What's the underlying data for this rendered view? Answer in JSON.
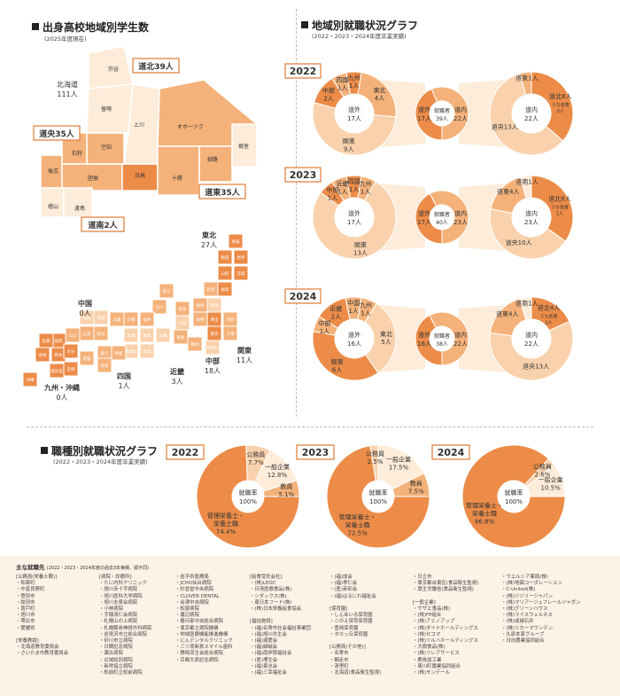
{
  "header": {
    "students_title": "出身高校地域別学生数",
    "students_sub": "(2025年度現在)",
    "regional_title": "地域別就職状況グラフ",
    "regional_sub": "(2022・2023・2024年度卒業実績)",
    "occupation_title": "職種別就職状況グラフ",
    "occupation_sub": "(2022・2023・2024年度卒業実績)"
  },
  "hokkaido_map": {
    "subregions": [
      "宗谷",
      "留萌",
      "上川",
      "オホーツク",
      "空知",
      "石狩",
      "後志",
      "胆振",
      "日高",
      "十勝",
      "釧路",
      "根室",
      "檜山",
      "渡島"
    ],
    "callouts": [
      {
        "name": "北海道",
        "count": "111人"
      },
      {
        "name": "道北",
        "count": "39人"
      },
      {
        "name": "道央",
        "count": "35人"
      },
      {
        "name": "道東",
        "count": "35人"
      },
      {
        "name": "道南",
        "count": "2人"
      }
    ]
  },
  "japan_map": {
    "prefectures": [
      "青森",
      "秋田",
      "岩手",
      "山形",
      "宮城",
      "新潟",
      "福島",
      "群馬",
      "栃木",
      "長野",
      "埼玉",
      "茨城",
      "岐阜",
      "山梨",
      "東京",
      "千葉",
      "富山",
      "石川",
      "福井",
      "滋賀",
      "京都",
      "兵庫",
      "大阪",
      "奈良",
      "和歌山",
      "三重",
      "愛知",
      "静岡",
      "神奈川",
      "鳥取",
      "島根",
      "岡山",
      "広島",
      "山口",
      "香川",
      "徳島",
      "愛媛",
      "高知",
      "福岡",
      "佐賀",
      "長崎",
      "熊本",
      "大分",
      "宮崎",
      "鹿児島",
      "沖縄"
    ],
    "regions": [
      {
        "name": "東北",
        "count": "27人"
      },
      {
        "name": "中国",
        "count": "0人"
      },
      {
        "name": "関東",
        "count": "11人"
      },
      {
        "name": "中部",
        "count": "18人"
      },
      {
        "name": "近畿",
        "count": "3人"
      },
      {
        "name": "四国",
        "count": "1人"
      },
      {
        "name": "九州・沖縄",
        "count": "0人"
      }
    ]
  },
  "colors": {
    "dark": "#ec8c48",
    "mid": "#f4b27a",
    "light": "#f9d2ad",
    "pale": "#fdecd9",
    "outline": "#e07a35"
  },
  "chart_data": [
    {
      "type": "pie",
      "title": "地域別就職状況グラフ",
      "years": [
        {
          "year": "2022",
          "center": {
            "label": "就職者",
            "count": "39人"
          },
          "outside": {
            "slices": [
              {
                "label": "北海道外",
                "value": 17
              },
              {
                "label": "北海道内",
                "value": 22
              }
            ],
            "labels": [
              {
                "name": "道外",
                "count": "17人"
              },
              {
                "name": "道内",
                "count": "22人"
              }
            ]
          },
          "left": {
            "center": {
              "name": "道外",
              "count": "17人"
            },
            "slices": [
              {
                "name": "東北",
                "value": 4,
                "count": "4人"
              },
              {
                "name": "関東",
                "value": 9,
                "count": "9人"
              },
              {
                "name": "中部",
                "value": 2,
                "count": "2人"
              },
              {
                "name": "四国",
                "value": 1,
                "count": "1人"
              },
              {
                "name": "九州",
                "value": 1,
                "count": "1人"
              }
            ]
          },
          "right": {
            "center": {
              "name": "道内",
              "count": "22人"
            },
            "slices": [
              {
                "name": "道北",
                "value": 8,
                "count": "8人",
                "note": "うち名寄",
                "note_count": "0人"
              },
              {
                "name": "道央",
                "value": 13,
                "count": "13人"
              },
              {
                "name": "道東",
                "value": 1,
                "count": "1人"
              }
            ]
          }
        },
        {
          "year": "2023",
          "center": {
            "label": "就職者",
            "count": "40人"
          },
          "outside": {
            "slices": [
              {
                "label": "北海道外",
                "value": 17
              },
              {
                "label": "北海道内",
                "value": 23
              }
            ],
            "labels": [
              {
                "name": "道外",
                "count": "17人"
              },
              {
                "name": "道内",
                "count": "23人"
              }
            ]
          },
          "left": {
            "center": {
              "name": "道外",
              "count": "17人"
            },
            "slices": [
              {
                "name": "九州",
                "value": 1,
                "count": "1人"
              },
              {
                "name": "関東",
                "value": 13,
                "count": "13人"
              },
              {
                "name": "中部",
                "value": 1,
                "count": "1人"
              },
              {
                "name": "近畿",
                "value": 1,
                "count": "1人"
              },
              {
                "name": "四国",
                "value": 1,
                "count": "1人"
              }
            ]
          },
          "right": {
            "center": {
              "name": "道内",
              "count": "23人"
            },
            "slices": [
              {
                "name": "道北",
                "value": 8,
                "count": "8人",
                "note": "うち名寄",
                "note_count": "1人"
              },
              {
                "name": "道央",
                "value": 10,
                "count": "10人"
              },
              {
                "name": "道東",
                "value": 4,
                "count": "4人"
              },
              {
                "name": "道南",
                "value": 1,
                "count": "1人"
              }
            ]
          }
        },
        {
          "year": "2024",
          "center": {
            "label": "就職者",
            "count": "38人"
          },
          "outside": {
            "slices": [
              {
                "label": "北海道外",
                "value": 16
              },
              {
                "label": "北海道内",
                "value": 22
              }
            ],
            "labels": [
              {
                "name": "道外",
                "count": "16人"
              },
              {
                "name": "道内",
                "count": "22人"
              }
            ]
          },
          "left": {
            "center": {
              "name": "道外",
              "count": "16人"
            },
            "slices": [
              {
                "name": "九州",
                "value": 1,
                "count": "1人"
              },
              {
                "name": "東北",
                "value": 5,
                "count": "5人"
              },
              {
                "name": "関東",
                "value": 6,
                "count": "6人"
              },
              {
                "name": "中部",
                "value": 1,
                "count": "1人"
              },
              {
                "name": "近畿",
                "value": 2,
                "count": "2人"
              },
              {
                "name": "中国",
                "value": 1,
                "count": "1人"
              }
            ]
          },
          "right": {
            "center": {
              "name": "道内",
              "count": "22人"
            },
            "slices": [
              {
                "name": "道北",
                "value": 4,
                "count": "4人",
                "note": "うち名寄",
                "note_count": "2人"
              },
              {
                "name": "道央",
                "value": 13,
                "count": "13人"
              },
              {
                "name": "道東",
                "value": 4,
                "count": "4人"
              },
              {
                "name": "道南",
                "value": 1,
                "count": "1人"
              }
            ]
          }
        }
      ]
    },
    {
      "type": "pie",
      "title": "職種別就職状況グラフ",
      "center": {
        "label": "就職率",
        "value": "100%"
      },
      "years": [
        {
          "year": "2022",
          "slices": [
            {
              "name": "管理栄養士・栄養士職",
              "value": 74.4,
              "label": "74.4%"
            },
            {
              "name": "公務員",
              "value": 7.7,
              "label": "7.7%"
            },
            {
              "name": "一般企業",
              "value": 12.8,
              "label": "12.8%"
            },
            {
              "name": "教員",
              "value": 5.1,
              "label": "5.1%"
            }
          ]
        },
        {
          "year": "2023",
          "slices": [
            {
              "name": "管理栄養士・栄養士職",
              "value": 72.5,
              "label": "72.5%"
            },
            {
              "name": "公務員",
              "value": 2.5,
              "label": "2.5%"
            },
            {
              "name": "一般企業",
              "value": 17.5,
              "label": "17.5%"
            },
            {
              "name": "教員",
              "value": 7.5,
              "label": "7.5%"
            }
          ]
        },
        {
          "year": "2024",
          "slices": [
            {
              "name": "管理栄養士・栄養士職",
              "value": 86.8,
              "label": "86.8%"
            },
            {
              "name": "公務員",
              "value": 2.6,
              "label": "2.6%"
            },
            {
              "name": "一般企業",
              "value": 10.5,
              "label": "10.5%"
            }
          ]
        }
      ]
    }
  ],
  "employers": {
    "title": "主な就職先",
    "title_note": "(2022・2023・2024年度の過去3年実績、順不同)",
    "columns": [
      [
        "[公務員(栄養士職)]",
        "・和寒町",
        "・中富良野町",
        "・登別市",
        "・紋別市",
        "・置戸町",
        "・旭川市",
        "・帯広市",
        "・愛媛県",
        "",
        "[栄養教諭]",
        "・北海道教育委員会",
        "・さいたま市教育委員会"
      ],
      [
        "[病院・診療所]",
        "・たに内科クリニック",
        "・旭川赤十字病院",
        "・旭川医科大学病院",
        "・旭川圭泉会病院",
        "・小林病院",
        "・手稲渓仁会病院",
        "・札幌山の上病院",
        "・札幌藤島神経外科病院",
        "・岩見沢市立総合病院",
        "・砂川市立病院",
        "・日鋼記念病院",
        "・瀬古病院",
        "・広域紋別病院",
        "・新得協立病院",
        "・松前町立松前病院"
      ],
      [
        "・岩手県医療局",
        "・JCHO仙台病院",
        "・杉並堂中央病院",
        "・CLOVER DENTAL",
        "・会津中央病院",
        "・松尾病院",
        "・裏辺病院",
        "・春日部中央総合病院",
        "・東京都立病院機構",
        "・地域医療機能推進機構",
        "・にんデンタルクリニック",
        "・三ツ境新泉スマイル歯科",
        "・静岡済生会総合病院",
        "・京都大原記念病院"
      ],
      [
        "[給食受託会社]",
        "・(株)LEOC",
        "・日清医療食品(株)",
        "・シダックス(株)",
        "・東日本フード(株)",
        "・(株)日本栄養給食協会",
        "",
        "[福祉施設]",
        "・(福)名寄市社会福祉事業団",
        "・(福)旭川共生会",
        "・(福)湖愛会",
        "・(福)緑誠会",
        "・(福)南伊那福祉会",
        "・(医)埋生会",
        "・(福)東水会",
        "・(福)三幸福祉会"
      ],
      [
        "・(福)成会",
        "・(福)孝仁会",
        "・(医)英彩会",
        "・(福)はるにれ福祉会",
        "",
        "[保育園]",
        "・しんあいる保育園",
        "・このえ保育保育園",
        "・豊岡保育園",
        "・タカッ丘保育園",
        "",
        "[公務員(その他)]",
        "・名寄市",
        "・網走市",
        "・清里町",
        "・北海道(食品衛生監視)"
      ],
      [
        "・日立市",
        "・東京都台東区(食品衛生監視)",
        "・厚生労働省(食品衛生監視)",
        "",
        "[一般企業]",
        "・サザエ食品(株)",
        "・(株)FP組合",
        "・(株)アミノアップ",
        "・(株)ダイナホールディングス",
        "・(株)セコマ",
        "・(株)ツルハホールディングス",
        "・大樹食品(株)",
        "・(株)フレアサービス",
        "・鹿島加工業",
        "・東川町農業協同組合",
        "・(株)モンデール"
      ],
      [
        "・ウエルシア薬局(株)",
        "・(株)地図コーポレーション",
        "・C-United(株)",
        "・(株)ジジリージャパン",
        "・(株)マリアージュフレールジャポン",
        "・(株)グリーンハウス",
        "・(株)ライスウェルネス",
        "・(株)成城石井",
        "・(株)リカーマウンテン",
        "・久原本家グループ",
        "・日向農業協同組合"
      ]
    ]
  }
}
